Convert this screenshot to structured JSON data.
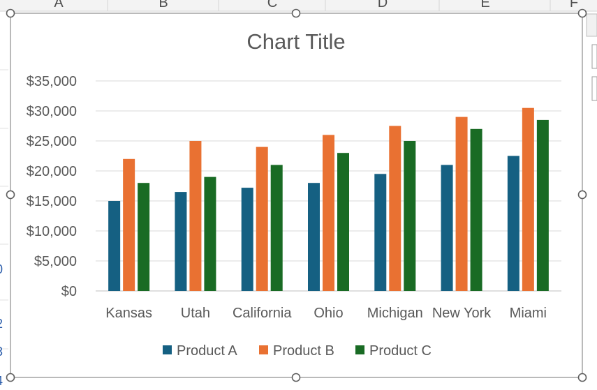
{
  "spreadsheet": {
    "column_headers": [
      "A",
      "B",
      "C",
      "D",
      "E",
      "F"
    ],
    "row_fragments": [
      "0",
      "2",
      "3",
      "4"
    ]
  },
  "chart_data": {
    "type": "bar",
    "title": "Chart Title",
    "categories": [
      "Kansas",
      "Utah",
      "California",
      "Ohio",
      "Michigan",
      "New York",
      "Miami"
    ],
    "series": [
      {
        "name": "Product A",
        "values": [
          15000,
          16500,
          17200,
          18000,
          19500,
          21000,
          22500
        ],
        "color": "#156082"
      },
      {
        "name": "Product B",
        "values": [
          22000,
          25000,
          24000,
          26000,
          27500,
          29000,
          30500
        ],
        "color": "#E97132"
      },
      {
        "name": "Product C",
        "values": [
          18000,
          19000,
          21000,
          23000,
          25000,
          27000,
          28500
        ],
        "color": "#196B24"
      }
    ],
    "ylim": [
      0,
      35000
    ],
    "yticks": [
      0,
      5000,
      10000,
      15000,
      20000,
      25000,
      30000,
      35000
    ],
    "ytick_labels": [
      "$0",
      "$5,000",
      "$10,000",
      "$15,000",
      "$20,000",
      "$25,000",
      "$30,000",
      "$35,000"
    ],
    "xlabel": "",
    "ylabel": "",
    "grid": true,
    "legend_position": "bottom"
  }
}
